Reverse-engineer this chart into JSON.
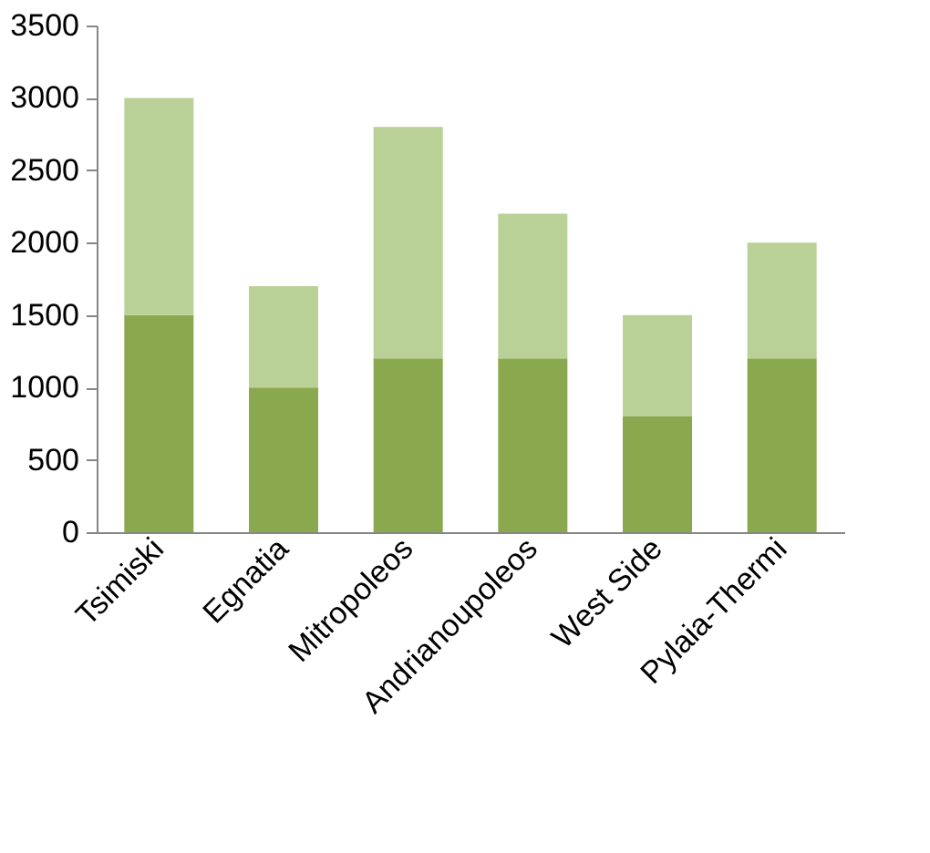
{
  "chart_data": {
    "type": "bar",
    "stacked": true,
    "categories": [
      "Tsimiski",
      "Egnatia",
      "Mitropoleos",
      "Andrianoupoleos",
      "West Side",
      "Pylaia-Thermi"
    ],
    "series": [
      {
        "color": "#8aa84e",
        "values": [
          1500,
          1000,
          1200,
          1200,
          800,
          1200
        ]
      },
      {
        "color": "#b9d196",
        "values": [
          1500,
          700,
          1600,
          1000,
          700,
          800
        ]
      }
    ],
    "ylim": [
      0,
      3500
    ],
    "yticks": [
      0,
      500,
      1000,
      1500,
      2000,
      2500,
      3000,
      3500
    ],
    "grid": false,
    "legend": false
  }
}
